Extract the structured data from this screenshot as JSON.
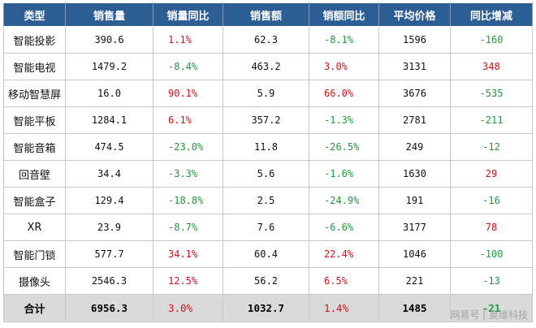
{
  "table": {
    "headers": [
      "类型",
      "销售量",
      "销量同比",
      "销售额",
      "销额同比",
      "平均价格",
      "同比增减"
    ],
    "rows": [
      {
        "type": "智能投影",
        "volume": "390.6",
        "volume_yoy": "1.1%",
        "volume_yoy_dir": "pos",
        "revenue": "62.3",
        "revenue_yoy": "-8.1%",
        "revenue_yoy_dir": "neg",
        "avg_price": "1596",
        "price_change": "-160",
        "price_change_dir": "neg"
      },
      {
        "type": "智能电视",
        "volume": "1479.2",
        "volume_yoy": "-8.4%",
        "volume_yoy_dir": "neg",
        "revenue": "463.2",
        "revenue_yoy": "3.0%",
        "revenue_yoy_dir": "pos",
        "avg_price": "3131",
        "price_change": "348",
        "price_change_dir": "pos"
      },
      {
        "type": "移动智慧屏",
        "volume": "16.0",
        "volume_yoy": "90.1%",
        "volume_yoy_dir": "pos",
        "revenue": "5.9",
        "revenue_yoy": "66.0%",
        "revenue_yoy_dir": "pos",
        "avg_price": "3676",
        "price_change": "-535",
        "price_change_dir": "neg"
      },
      {
        "type": "智能平板",
        "volume": "1284.1",
        "volume_yoy": "6.1%",
        "volume_yoy_dir": "pos",
        "revenue": "357.2",
        "revenue_yoy": "-1.3%",
        "revenue_yoy_dir": "neg",
        "avg_price": "2781",
        "price_change": "-211",
        "price_change_dir": "neg"
      },
      {
        "type": "智能音箱",
        "volume": "474.5",
        "volume_yoy": "-23.0%",
        "volume_yoy_dir": "neg",
        "revenue": "11.8",
        "revenue_yoy": "-26.5%",
        "revenue_yoy_dir": "neg",
        "avg_price": "249",
        "price_change": "-12",
        "price_change_dir": "neg"
      },
      {
        "type": "回音壁",
        "volume": "34.4",
        "volume_yoy": "-3.3%",
        "volume_yoy_dir": "neg",
        "revenue": "5.6",
        "revenue_yoy": "-1.6%",
        "revenue_yoy_dir": "neg",
        "avg_price": "1630",
        "price_change": "29",
        "price_change_dir": "pos"
      },
      {
        "type": "智能盒子",
        "volume": "129.4",
        "volume_yoy": "-18.8%",
        "volume_yoy_dir": "neg",
        "revenue": "2.5",
        "revenue_yoy": "-24.9%",
        "revenue_yoy_dir": "neg",
        "avg_price": "191",
        "price_change": "-16",
        "price_change_dir": "neg"
      },
      {
        "type": "XR",
        "volume": "23.9",
        "volume_yoy": "-8.7%",
        "volume_yoy_dir": "neg",
        "revenue": "7.6",
        "revenue_yoy": "-6.6%",
        "revenue_yoy_dir": "neg",
        "avg_price": "3177",
        "price_change": "78",
        "price_change_dir": "pos"
      },
      {
        "type": "智能门锁",
        "volume": "577.7",
        "volume_yoy": "34.1%",
        "volume_yoy_dir": "pos",
        "revenue": "60.4",
        "revenue_yoy": "22.4%",
        "revenue_yoy_dir": "pos",
        "avg_price": "1046",
        "price_change": "-100",
        "price_change_dir": "neg"
      },
      {
        "type": "摄像头",
        "volume": "2546.3",
        "volume_yoy": "12.5%",
        "volume_yoy_dir": "pos",
        "revenue": "56.2",
        "revenue_yoy": "6.5%",
        "revenue_yoy_dir": "pos",
        "avg_price": "221",
        "price_change": "-13",
        "price_change_dir": "neg"
      }
    ],
    "total": {
      "type": "合计",
      "volume": "6956.3",
      "volume_yoy": "3.0%",
      "volume_yoy_dir": "pos",
      "revenue": "1032.7",
      "revenue_yoy": "1.4%",
      "revenue_yoy_dir": "pos",
      "avg_price": "1485",
      "price_change": "-21",
      "price_change_dir": "neg"
    }
  },
  "watermark": "网易号 | 奥维科技",
  "colors": {
    "header_bg": "#2c5d93",
    "positive": "#d0121b",
    "negative": "#1d9a3c",
    "total_bg": "#dadada"
  }
}
